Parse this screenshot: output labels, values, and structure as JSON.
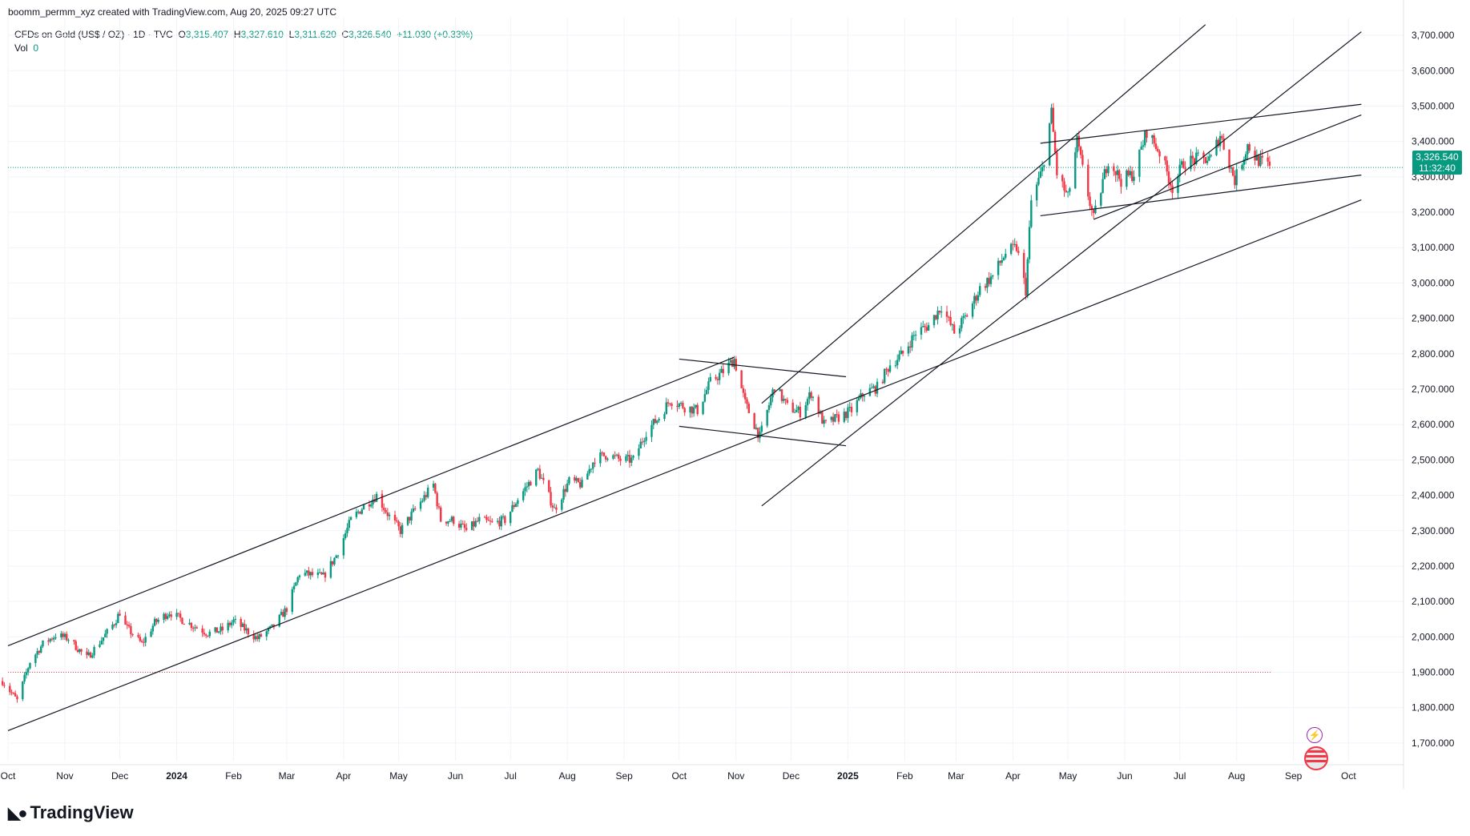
{
  "header": {
    "attribution": "boomm_permm_xyz created with TradingView.com, Aug 20, 2025 09:27 UTC"
  },
  "legend": {
    "symbol": "CFDs on Gold (US$ / OZ) · 1D · TVC",
    "open_label": "O",
    "open": "3,315.407",
    "high_label": "H",
    "high": "3,327.610",
    "low_label": "L",
    "low": "3,311.620",
    "close_label": "C",
    "close": "3,326.540",
    "change": "+11.030 (+0.33%)",
    "vol_label": "Vol",
    "vol": "0"
  },
  "price_badge": {
    "price": "3,326.540",
    "countdown": "11:32:40"
  },
  "logo": {
    "text": "TradingView"
  },
  "colors": {
    "up": "#089981",
    "down": "#f23645",
    "line": "#131722",
    "grid": "#f0f3fa"
  },
  "chart_data": {
    "type": "candlestick",
    "y_axis": {
      "min": 1650,
      "max": 3750,
      "ticks": [
        1700,
        1800,
        1900,
        2000,
        2100,
        2200,
        2300,
        2400,
        2500,
        2600,
        2700,
        2800,
        2900,
        3000,
        3100,
        3200,
        3300,
        3400,
        3500,
        3600,
        3700
      ],
      "tick_labels": [
        "1,700.000",
        "1,800.000",
        "1,900.000",
        "2,000.000",
        "2,100.000",
        "2,200.000",
        "2,300.000",
        "2,400.000",
        "2,500.000",
        "2,600.000",
        "2,700.000",
        "2,800.000",
        "2,900.000",
        "3,000.000",
        "3,100.000",
        "3,200.000",
        "3,300.000",
        "3,400.000",
        "3,500.000",
        "3,600.000",
        "3,700.000"
      ]
    },
    "x_axis": {
      "start": "2023-10-01",
      "end": "2025-10-31",
      "ticks": [
        {
          "date": "2023-10-01",
          "label": "Oct"
        },
        {
          "date": "2023-11-01",
          "label": "Nov"
        },
        {
          "date": "2023-12-01",
          "label": "Dec"
        },
        {
          "date": "2024-01-01",
          "label": "2024"
        },
        {
          "date": "2024-02-01",
          "label": "Feb"
        },
        {
          "date": "2024-03-01",
          "label": "Mar"
        },
        {
          "date": "2024-04-01",
          "label": "Apr"
        },
        {
          "date": "2024-05-01",
          "label": "May"
        },
        {
          "date": "2024-06-01",
          "label": "Jun"
        },
        {
          "date": "2024-07-01",
          "label": "Jul"
        },
        {
          "date": "2024-08-01",
          "label": "Aug"
        },
        {
          "date": "2024-09-01",
          "label": "Sep"
        },
        {
          "date": "2024-10-01",
          "label": "Oct"
        },
        {
          "date": "2024-11-01",
          "label": "Nov"
        },
        {
          "date": "2024-12-01",
          "label": "Dec"
        },
        {
          "date": "2025-01-01",
          "label": "2025"
        },
        {
          "date": "2025-02-01",
          "label": "Feb"
        },
        {
          "date": "2025-03-01",
          "label": "Mar"
        },
        {
          "date": "2025-04-01",
          "label": "Apr"
        },
        {
          "date": "2025-05-01",
          "label": "May"
        },
        {
          "date": "2025-06-01",
          "label": "Jun"
        },
        {
          "date": "2025-07-01",
          "label": "Jul"
        },
        {
          "date": "2025-08-01",
          "label": "Aug"
        },
        {
          "date": "2025-09-01",
          "label": "Sep"
        },
        {
          "date": "2025-10-01",
          "label": "Oct"
        }
      ]
    },
    "price_path": [
      [
        "2023-09-28",
        1875
      ],
      [
        "2023-10-06",
        1820
      ],
      [
        "2023-10-13",
        1930
      ],
      [
        "2023-10-20",
        1980
      ],
      [
        "2023-10-27",
        2005
      ],
      [
        "2023-11-03",
        1995
      ],
      [
        "2023-11-13",
        1940
      ],
      [
        "2023-11-20",
        1985
      ],
      [
        "2023-11-28",
        2040
      ],
      [
        "2023-12-01",
        2070
      ],
      [
        "2023-12-04",
        2030
      ],
      [
        "2023-12-13",
        1980
      ],
      [
        "2023-12-20",
        2040
      ],
      [
        "2023-12-28",
        2070
      ],
      [
        "2024-01-05",
        2045
      ],
      [
        "2024-01-18",
        2010
      ],
      [
        "2024-01-26",
        2020
      ],
      [
        "2024-02-01",
        2045
      ],
      [
        "2024-02-14",
        1995
      ],
      [
        "2024-02-22",
        2025
      ],
      [
        "2024-03-01",
        2080
      ],
      [
        "2024-03-08",
        2180
      ],
      [
        "2024-03-21",
        2170
      ],
      [
        "2024-03-28",
        2230
      ],
      [
        "2024-04-05",
        2330
      ],
      [
        "2024-04-12",
        2370
      ],
      [
        "2024-04-19",
        2400
      ],
      [
        "2024-04-26",
        2340
      ],
      [
        "2024-05-02",
        2300
      ],
      [
        "2024-05-10",
        2360
      ],
      [
        "2024-05-20",
        2430
      ],
      [
        "2024-05-24",
        2330
      ],
      [
        "2024-05-31",
        2330
      ],
      [
        "2024-06-07",
        2300
      ],
      [
        "2024-06-14",
        2330
      ],
      [
        "2024-06-21",
        2320
      ],
      [
        "2024-06-28",
        2330
      ],
      [
        "2024-07-05",
        2390
      ],
      [
        "2024-07-16",
        2470
      ],
      [
        "2024-07-25",
        2360
      ],
      [
        "2024-08-02",
        2440
      ],
      [
        "2024-08-09",
        2430
      ],
      [
        "2024-08-16",
        2505
      ],
      [
        "2024-08-23",
        2515
      ],
      [
        "2024-08-30",
        2500
      ],
      [
        "2024-09-06",
        2500
      ],
      [
        "2024-09-13",
        2580
      ],
      [
        "2024-09-20",
        2620
      ],
      [
        "2024-09-26",
        2670
      ],
      [
        "2024-10-04",
        2650
      ],
      [
        "2024-10-11",
        2640
      ],
      [
        "2024-10-18",
        2720
      ],
      [
        "2024-10-25",
        2750
      ],
      [
        "2024-10-31",
        2785
      ],
      [
        "2024-11-06",
        2660
      ],
      [
        "2024-11-14",
        2565
      ],
      [
        "2024-11-22",
        2710
      ],
      [
        "2024-11-29",
        2650
      ],
      [
        "2024-12-06",
        2635
      ],
      [
        "2024-12-12",
        2690
      ],
      [
        "2024-12-19",
        2600
      ],
      [
        "2024-12-27",
        2620
      ],
      [
        "2025-01-03",
        2640
      ],
      [
        "2025-01-10",
        2690
      ],
      [
        "2025-01-17",
        2705
      ],
      [
        "2025-01-24",
        2770
      ],
      [
        "2025-01-31",
        2800
      ],
      [
        "2025-02-07",
        2860
      ],
      [
        "2025-02-14",
        2880
      ],
      [
        "2025-02-21",
        2935
      ],
      [
        "2025-02-28",
        2860
      ],
      [
        "2025-03-07",
        2910
      ],
      [
        "2025-03-14",
        2985
      ],
      [
        "2025-03-21",
        3020
      ],
      [
        "2025-03-28",
        3085
      ],
      [
        "2025-04-03",
        3100
      ],
      [
        "2025-04-08",
        2980
      ],
      [
        "2025-04-11",
        3230
      ],
      [
        "2025-04-17",
        3320
      ],
      [
        "2025-04-22",
        3480
      ],
      [
        "2025-04-25",
        3310
      ],
      [
        "2025-05-01",
        3240
      ],
      [
        "2025-05-06",
        3400
      ],
      [
        "2025-05-09",
        3320
      ],
      [
        "2025-05-15",
        3180
      ],
      [
        "2025-05-23",
        3350
      ],
      [
        "2025-05-30",
        3290
      ],
      [
        "2025-06-06",
        3310
      ],
      [
        "2025-06-13",
        3430
      ],
      [
        "2025-06-20",
        3370
      ],
      [
        "2025-06-27",
        3270
      ],
      [
        "2025-07-03",
        3340
      ],
      [
        "2025-07-11",
        3350
      ],
      [
        "2025-07-18",
        3350
      ],
      [
        "2025-07-23",
        3420
      ],
      [
        "2025-07-31",
        3290
      ],
      [
        "2025-08-07",
        3390
      ],
      [
        "2025-08-12",
        3350
      ],
      [
        "2025-08-19",
        3326
      ]
    ],
    "trend_lines": [
      {
        "from": [
          "2023-10-01",
          1975
        ],
        "to": [
          "2024-10-31",
          2790
        ]
      },
      {
        "from": [
          "2023-10-01",
          1735
        ],
        "to": [
          "2025-10-08",
          3235
        ]
      },
      {
        "from": [
          "2024-11-15",
          2660
        ],
        "to": [
          "2025-07-15",
          3730
        ]
      },
      {
        "from": [
          "2024-11-15",
          2370
        ],
        "to": [
          "2025-10-08",
          3710
        ]
      },
      {
        "from": [
          "2024-10-01",
          2785
        ],
        "to": [
          "2024-12-31",
          2735
        ]
      },
      {
        "from": [
          "2024-10-01",
          2595
        ],
        "to": [
          "2024-12-31",
          2540
        ]
      },
      {
        "from": [
          "2025-04-16",
          3395
        ],
        "to": [
          "2025-10-08",
          3505
        ]
      },
      {
        "from": [
          "2025-04-16",
          3190
        ],
        "to": [
          "2025-10-08",
          3305
        ]
      },
      {
        "from": [
          "2025-05-15",
          3180
        ],
        "to": [
          "2025-10-08",
          3475
        ]
      }
    ],
    "horizontal_lines": [
      {
        "price": 3326.54,
        "style": "dotted",
        "color": "#089981"
      },
      {
        "price": 1900,
        "style": "dotted",
        "color": "#f23645",
        "from": "2023-10-01",
        "to": "2025-08-20"
      }
    ]
  }
}
